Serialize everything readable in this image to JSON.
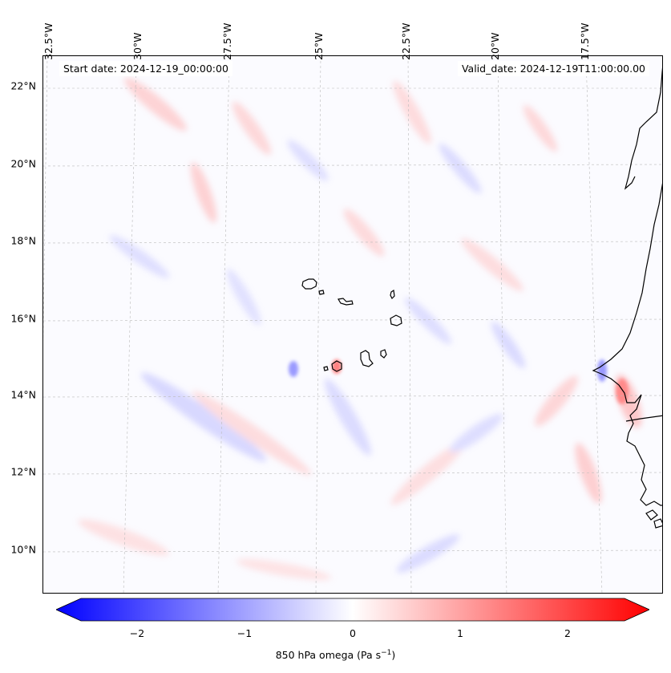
{
  "map": {
    "title_left": "Start date: 2024-12-19_00:00:00",
    "title_right": "Valid_date: 2024-12-19T11:00:00.00",
    "lat_labels": [
      "22°N",
      "20°N",
      "18°N",
      "16°N",
      "14°N",
      "12°N",
      "10°N"
    ],
    "lon_labels": [
      "32.5°W",
      "30°W",
      "27.5°W",
      "25°W",
      "22.5°W",
      "20°W",
      "17.5°W"
    ],
    "variable": "850 hPa omega",
    "units": "Pa s⁻¹",
    "colorbar": {
      "label_main": "850 hPa omega (Pa s",
      "label_exp": "−1",
      "label_close": ")",
      "ticks": [
        "−2",
        "−1",
        "0",
        "1",
        "2"
      ],
      "range": [
        -2.5,
        2.5
      ],
      "colormap": "bwr",
      "colors": {
        "min": "#0000ff",
        "mid": "#ffffff",
        "max": "#ff0000"
      }
    },
    "features": [
      "Cape Verde Islands",
      "West African coastline"
    ]
  }
}
